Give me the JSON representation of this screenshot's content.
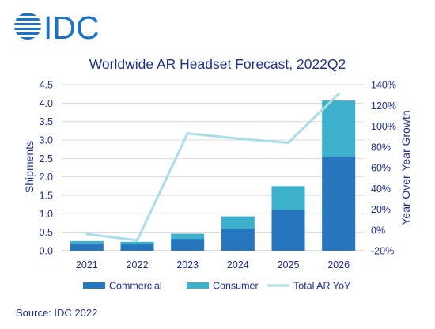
{
  "logo": {
    "text": "IDC"
  },
  "source": "Source: IDC 2022",
  "colors": {
    "commercial": "#2576bd",
    "consumer": "#3db1cc",
    "yoy": "#a8dde9",
    "text": "#1f2f8f",
    "grid": "#d9d9d9",
    "logo": "#1a72c9"
  },
  "chart_data": {
    "type": "bar",
    "stacked": true,
    "title": "Worldwide AR Headset Forecast, 2022Q2",
    "categories": [
      "2021",
      "2022",
      "2023",
      "2024",
      "2025",
      "2026"
    ],
    "series": [
      {
        "name": "Commercial",
        "type": "bar",
        "axis": "left",
        "values": [
          0.19,
          0.17,
          0.32,
          0.6,
          1.1,
          2.55
        ]
      },
      {
        "name": "Consumer",
        "type": "bar",
        "axis": "left",
        "values": [
          0.07,
          0.07,
          0.14,
          0.33,
          0.65,
          1.52
        ]
      },
      {
        "name": "Total AR YoY",
        "type": "line",
        "axis": "right",
        "values": [
          -4,
          -10,
          93,
          88,
          84,
          131
        ]
      }
    ],
    "ylabel": "Shipments",
    "ylim": [
      0,
      4.5
    ],
    "yticks": [
      "0.0",
      "0.5",
      "1.0",
      "1.5",
      "2.0",
      "2.5",
      "3.0",
      "3.5",
      "4.0",
      "4.5"
    ],
    "y2label": "Year-Over-Year Growth",
    "y2lim": [
      -20,
      140
    ],
    "y2ticks": [
      "-20%",
      "0%",
      "20%",
      "40%",
      "60%",
      "80%",
      "100%",
      "120%",
      "140%"
    ],
    "grid": true,
    "legend": "bottom"
  }
}
